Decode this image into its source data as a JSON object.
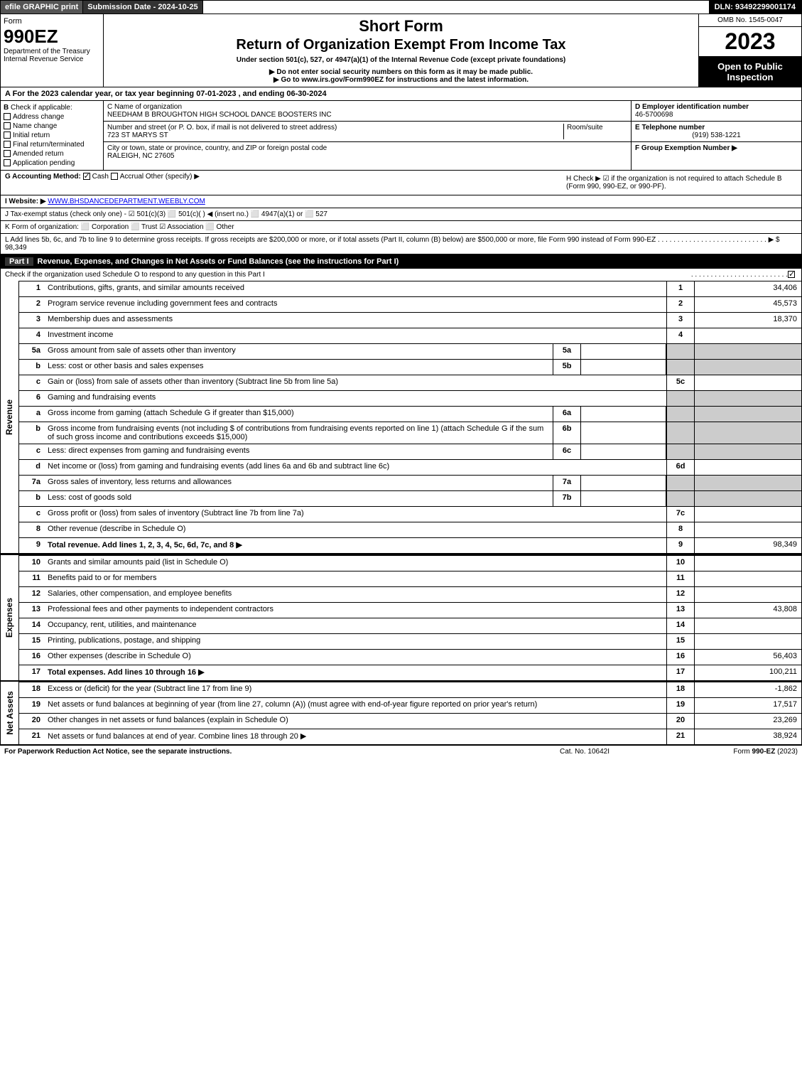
{
  "topbar": {
    "efile": "efile GRAPHIC print",
    "submission": "Submission Date - 2024-10-25",
    "dln": "DLN: 93492299001174"
  },
  "header": {
    "form_label": "Form",
    "form_code": "990EZ",
    "dept": "Department of the Treasury",
    "irs": "Internal Revenue Service",
    "title1": "Short Form",
    "title2": "Return of Organization Exempt From Income Tax",
    "subtitle": "Under section 501(c), 527, or 4947(a)(1) of the Internal Revenue Code (except private foundations)",
    "warn1": "▶ Do not enter social security numbers on this form as it may be made public.",
    "warn2": "▶ Go to www.irs.gov/Form990EZ for instructions and the latest information.",
    "omb": "OMB No. 1545-0047",
    "year": "2023",
    "open": "Open to Public Inspection"
  },
  "A": {
    "text": "A For the 2023 calendar year, or tax year beginning 07-01-2023 , and ending 06-30-2024"
  },
  "B": {
    "label": "Check if applicable:",
    "opts": [
      "Address change",
      "Name change",
      "Initial return",
      "Final return/terminated",
      "Amended return",
      "Application pending"
    ]
  },
  "C": {
    "name_label": "C Name of organization",
    "name": "NEEDHAM B BROUGHTON HIGH SCHOOL DANCE BOOSTERS INC",
    "addr_label": "Number and street (or P. O. box, if mail is not delivered to street address)",
    "room_label": "Room/suite",
    "addr": "723 ST MARYS ST",
    "city_label": "City or town, state or province, country, and ZIP or foreign postal code",
    "city": "RALEIGH, NC  27605"
  },
  "D": {
    "label": "D Employer identification number",
    "val": "46-5700698"
  },
  "E": {
    "label": "E Telephone number",
    "val": "(919) 538-1221"
  },
  "F": {
    "label": "F Group Exemption Number ▶",
    "val": ""
  },
  "G": {
    "label": "G Accounting Method:",
    "cash": "Cash",
    "accrual": "Accrual",
    "other": "Other (specify) ▶"
  },
  "H": {
    "text": "H Check ▶ ☑ if the organization is not required to attach Schedule B (Form 990, 990-EZ, or 990-PF)."
  },
  "I": {
    "label": "I Website: ▶",
    "val": "WWW.BHSDANCEDEPARTMENT.WEEBLY.COM"
  },
  "J": {
    "text": "J Tax-exempt status (check only one) - ☑ 501(c)(3) ⬜ 501(c)( ) ◀ (insert no.) ⬜ 4947(a)(1) or ⬜ 527"
  },
  "K": {
    "text": "K Form of organization: ⬜ Corporation ⬜ Trust ☑ Association ⬜ Other"
  },
  "L": {
    "text": "L Add lines 5b, 6c, and 7b to line 9 to determine gross receipts. If gross receipts are $200,000 or more, or if total assets (Part II, column (B) below) are $500,000 or more, file Form 990 instead of Form 990-EZ",
    "amt": "▶ $ 98,349"
  },
  "partI": {
    "hdr_num": "Part I",
    "hdr": "Revenue, Expenses, and Changes in Net Assets or Fund Balances (see the instructions for Part I)",
    "checkline": "Check if the organization used Schedule O to respond to any question in this Part I"
  },
  "vtabs": {
    "rev": "Revenue",
    "exp": "Expenses",
    "na": "Net Assets"
  },
  "rev": [
    {
      "n": "1",
      "d": "Contributions, gifts, grants, and similar amounts received",
      "r": "1",
      "a": "34,406"
    },
    {
      "n": "2",
      "d": "Program service revenue including government fees and contracts",
      "r": "2",
      "a": "45,573"
    },
    {
      "n": "3",
      "d": "Membership dues and assessments",
      "r": "3",
      "a": "18,370"
    },
    {
      "n": "4",
      "d": "Investment income",
      "r": "4",
      "a": ""
    },
    {
      "n": "5a",
      "d": "Gross amount from sale of assets other than inventory",
      "sub": "5a",
      "subv": "",
      "shaded": true
    },
    {
      "n": "b",
      "d": "Less: cost or other basis and sales expenses",
      "sub": "5b",
      "subv": "",
      "shaded": true
    },
    {
      "n": "c",
      "d": "Gain or (loss) from sale of assets other than inventory (Subtract line 5b from line 5a)",
      "r": "5c",
      "a": ""
    },
    {
      "n": "6",
      "d": "Gaming and fundraising events",
      "shaded": true
    },
    {
      "n": "a",
      "d": "Gross income from gaming (attach Schedule G if greater than $15,000)",
      "sub": "6a",
      "subv": "",
      "shaded": true
    },
    {
      "n": "b",
      "d": "Gross income from fundraising events (not including $                         of contributions from fundraising events reported on line 1) (attach Schedule G if the sum of such gross income and contributions exceeds $15,000)",
      "sub": "6b",
      "subv": "",
      "shaded": true
    },
    {
      "n": "c",
      "d": "Less: direct expenses from gaming and fundraising events",
      "sub": "6c",
      "subv": "",
      "shaded": true
    },
    {
      "n": "d",
      "d": "Net income or (loss) from gaming and fundraising events (add lines 6a and 6b and subtract line 6c)",
      "r": "6d",
      "a": ""
    },
    {
      "n": "7a",
      "d": "Gross sales of inventory, less returns and allowances",
      "sub": "7a",
      "subv": "",
      "shaded": true
    },
    {
      "n": "b",
      "d": "Less: cost of goods sold",
      "sub": "7b",
      "subv": "",
      "shaded": true
    },
    {
      "n": "c",
      "d": "Gross profit or (loss) from sales of inventory (Subtract line 7b from line 7a)",
      "r": "7c",
      "a": ""
    },
    {
      "n": "8",
      "d": "Other revenue (describe in Schedule O)",
      "r": "8",
      "a": ""
    },
    {
      "n": "9",
      "d": "Total revenue. Add lines 1, 2, 3, 4, 5c, 6d, 7c, and 8",
      "r": "9",
      "a": "98,349",
      "bold": true,
      "arrow": true
    }
  ],
  "exp": [
    {
      "n": "10",
      "d": "Grants and similar amounts paid (list in Schedule O)",
      "r": "10",
      "a": ""
    },
    {
      "n": "11",
      "d": "Benefits paid to or for members",
      "r": "11",
      "a": ""
    },
    {
      "n": "12",
      "d": "Salaries, other compensation, and employee benefits",
      "r": "12",
      "a": ""
    },
    {
      "n": "13",
      "d": "Professional fees and other payments to independent contractors",
      "r": "13",
      "a": "43,808"
    },
    {
      "n": "14",
      "d": "Occupancy, rent, utilities, and maintenance",
      "r": "14",
      "a": ""
    },
    {
      "n": "15",
      "d": "Printing, publications, postage, and shipping",
      "r": "15",
      "a": ""
    },
    {
      "n": "16",
      "d": "Other expenses (describe in Schedule O)",
      "r": "16",
      "a": "56,403"
    },
    {
      "n": "17",
      "d": "Total expenses. Add lines 10 through 16",
      "r": "17",
      "a": "100,211",
      "bold": true,
      "arrow": true
    }
  ],
  "na": [
    {
      "n": "18",
      "d": "Excess or (deficit) for the year (Subtract line 17 from line 9)",
      "r": "18",
      "a": "-1,862"
    },
    {
      "n": "19",
      "d": "Net assets or fund balances at beginning of year (from line 27, column (A)) (must agree with end-of-year figure reported on prior year's return)",
      "r": "19",
      "a": "17,517"
    },
    {
      "n": "20",
      "d": "Other changes in net assets or fund balances (explain in Schedule O)",
      "r": "20",
      "a": "23,269"
    },
    {
      "n": "21",
      "d": "Net assets or fund balances at end of year. Combine lines 18 through 20",
      "r": "21",
      "a": "38,924",
      "arrow": true
    }
  ],
  "footer": {
    "f1": "For Paperwork Reduction Act Notice, see the separate instructions.",
    "f2": "Cat. No. 10642I",
    "f3": "Form 990-EZ (2023)"
  }
}
